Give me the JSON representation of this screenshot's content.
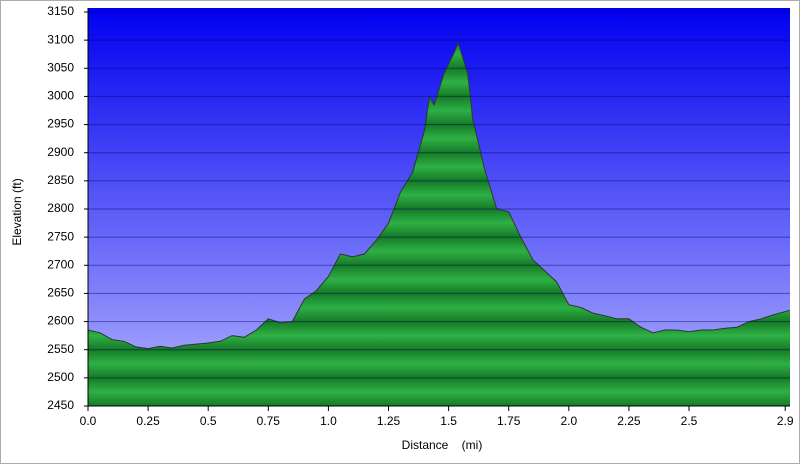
{
  "chart_data": {
    "type": "area",
    "x_label": "Distance    (mi)",
    "y_label": "Elevation (ft)",
    "x": [
      0,
      0.05,
      0.1,
      0.15,
      0.2,
      0.25,
      0.3,
      0.35,
      0.4,
      0.45,
      0.5,
      0.55,
      0.6,
      0.65,
      0.7,
      0.75,
      0.8,
      0.85,
      0.9,
      0.95,
      1.0,
      1.05,
      1.1,
      1.15,
      1.2,
      1.25,
      1.3,
      1.35,
      1.4,
      1.42,
      1.44,
      1.48,
      1.52,
      1.54,
      1.58,
      1.6,
      1.65,
      1.7,
      1.75,
      1.8,
      1.85,
      1.9,
      1.95,
      2.0,
      2.05,
      2.1,
      2.15,
      2.2,
      2.25,
      2.3,
      2.35,
      2.4,
      2.45,
      2.5,
      2.55,
      2.6,
      2.65,
      2.7,
      2.75,
      2.8,
      2.85,
      2.92
    ],
    "values": [
      2585,
      2580,
      2568,
      2565,
      2555,
      2552,
      2556,
      2553,
      2558,
      2560,
      2562,
      2565,
      2575,
      2572,
      2585,
      2605,
      2598,
      2600,
      2640,
      2655,
      2680,
      2720,
      2715,
      2720,
      2745,
      2775,
      2830,
      2865,
      2940,
      3000,
      2985,
      3040,
      3075,
      3095,
      3040,
      2960,
      2870,
      2800,
      2795,
      2750,
      2710,
      2690,
      2670,
      2630,
      2625,
      2615,
      2610,
      2605,
      2605,
      2590,
      2580,
      2585,
      2585,
      2582,
      2585,
      2585,
      2588,
      2590,
      2600,
      2605,
      2612,
      2620
    ],
    "color": "#22a33a",
    "xlim": [
      0,
      2.92
    ],
    "xticks": [
      {
        "value": 0,
        "label": "0.0"
      },
      0.25,
      0.5,
      0.75,
      {
        "value": 1,
        "label": "1.0"
      },
      1.25,
      1.5,
      1.75,
      {
        "value": 2,
        "label": "2.0"
      },
      2.25,
      2.5,
      2.9
    ],
    "ylim": [
      2450,
      3150
    ],
    "yticks": [
      2450,
      2500,
      2550,
      2600,
      2650,
      2700,
      2750,
      2800,
      2850,
      2900,
      2950,
      3000,
      3050,
      3100,
      3150
    ],
    "grid": true
  }
}
